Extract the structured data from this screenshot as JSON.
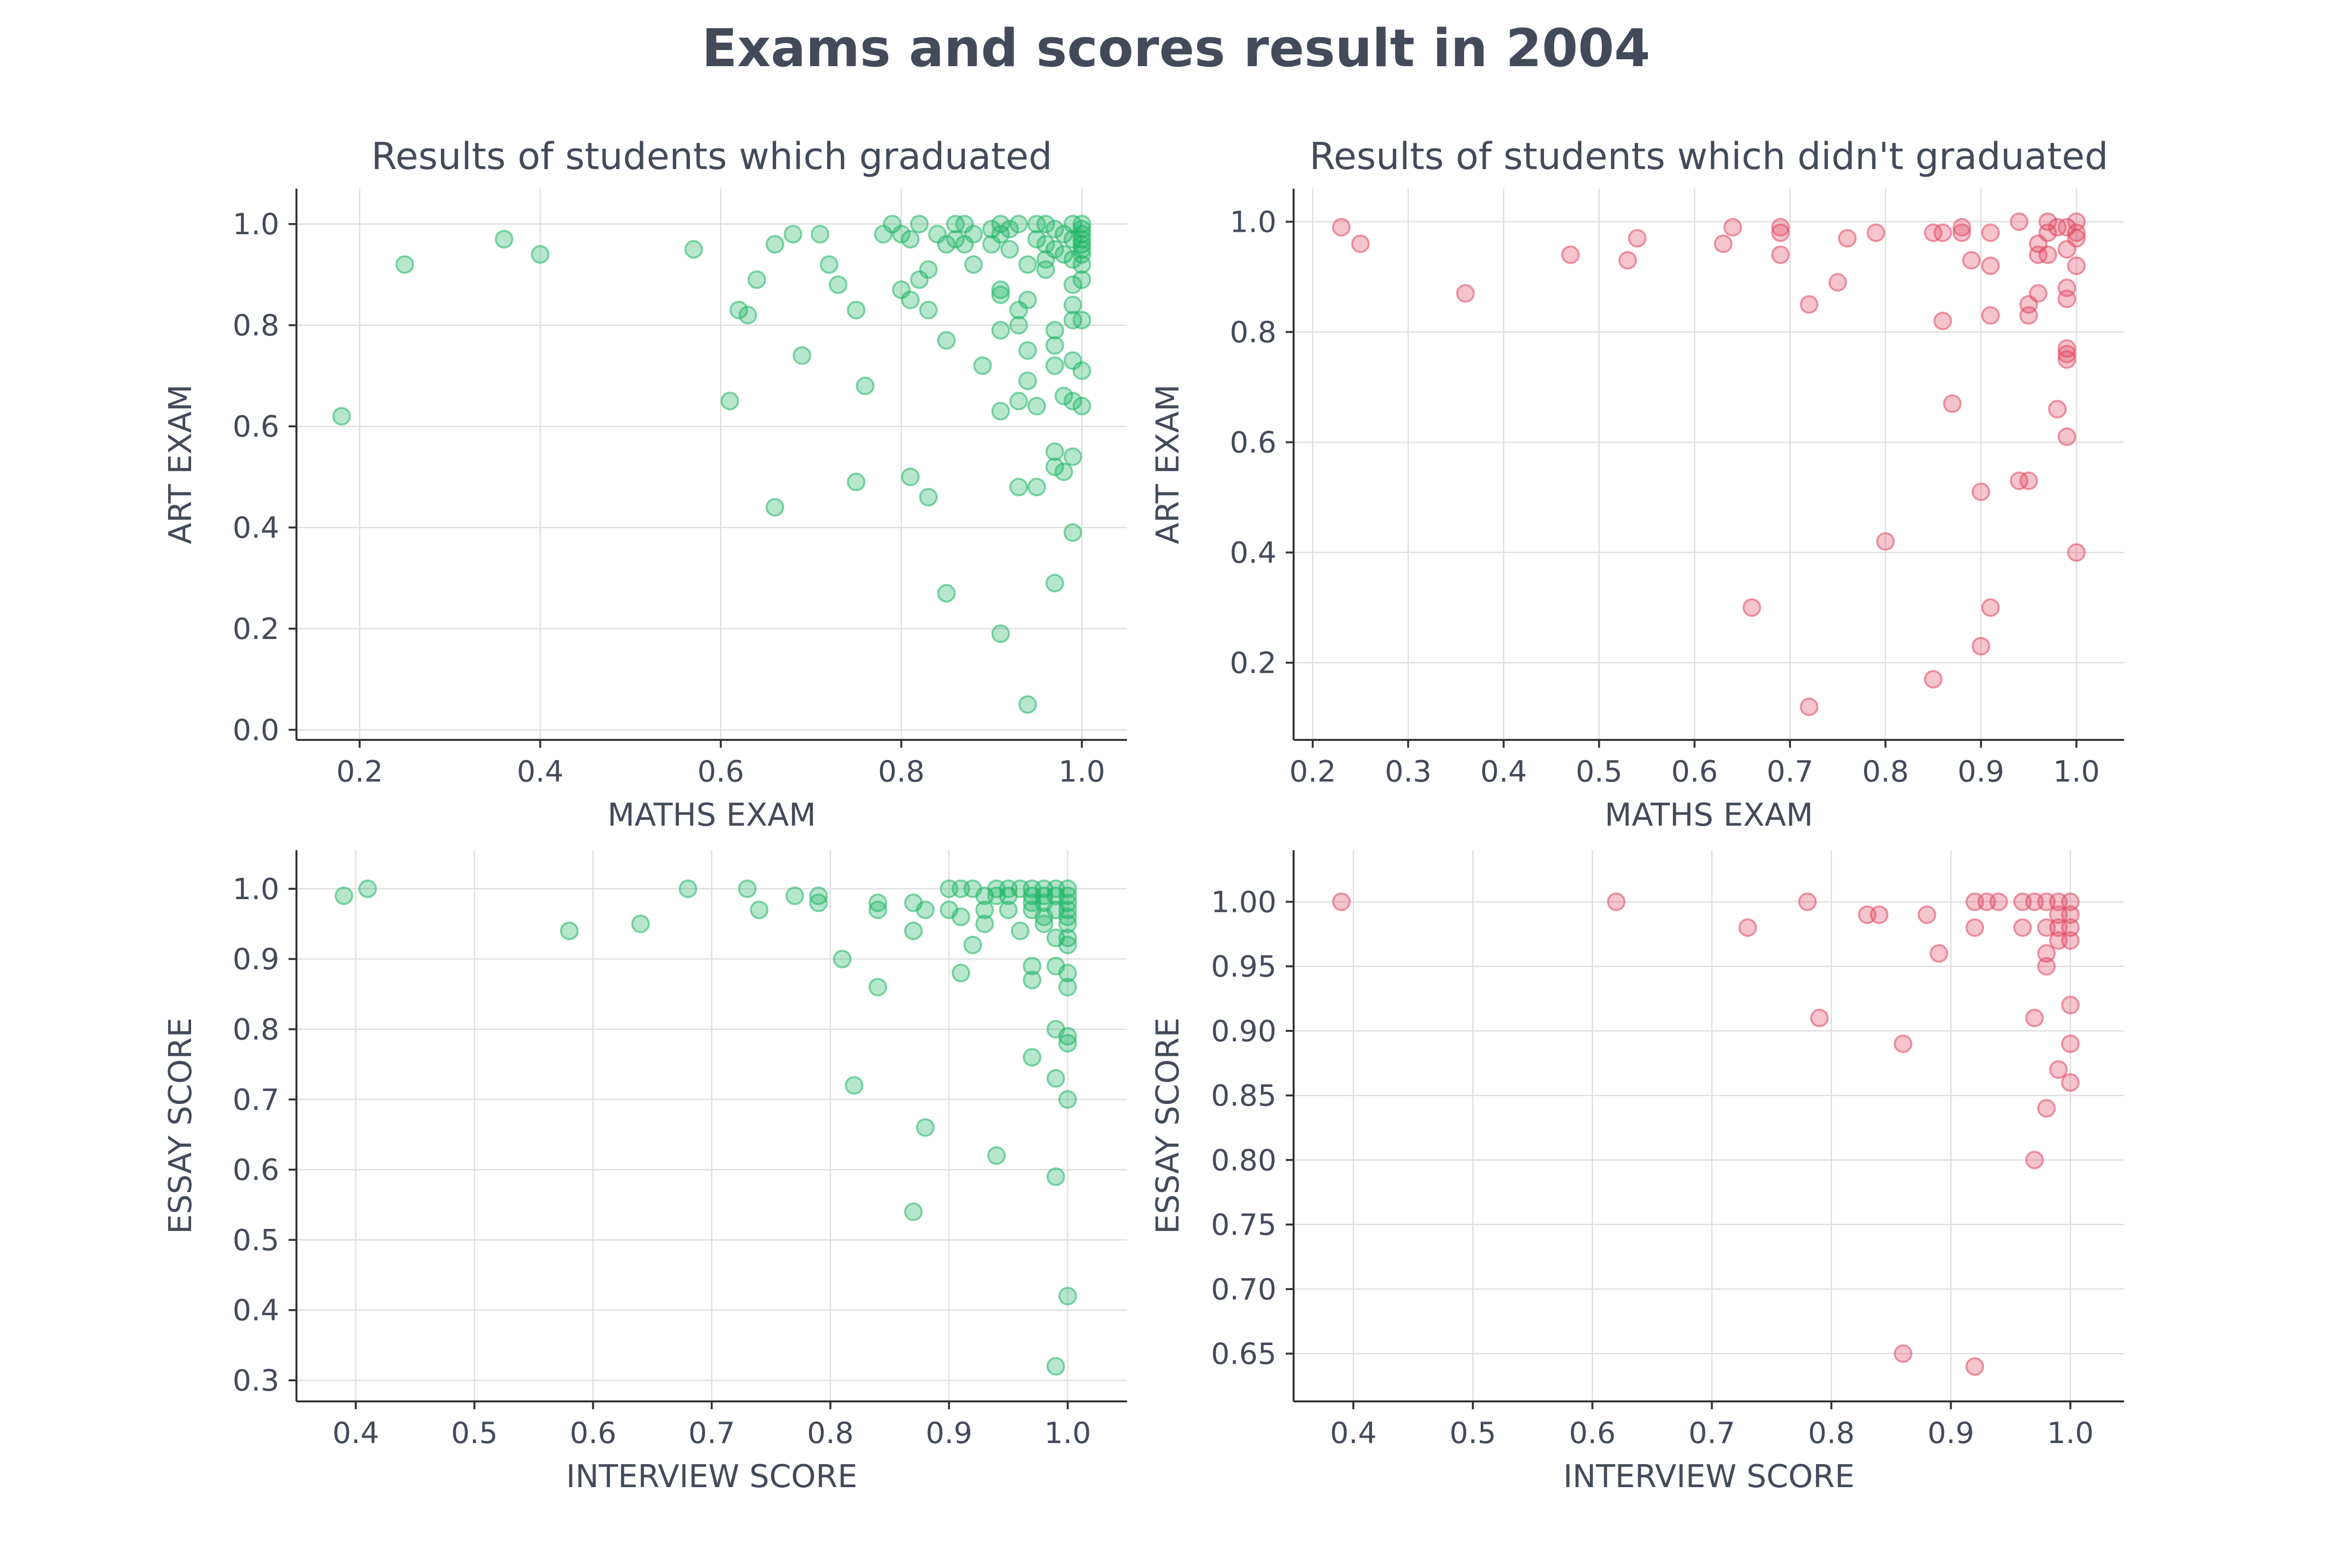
{
  "title": "Exams and scores result in 2004",
  "colors": {
    "graduated": "#1db462",
    "not_graduated": "#e0475f",
    "axis": "#333333",
    "grid": "#dddddd",
    "text": "#434a5a"
  },
  "chart_data": [
    {
      "type": "scatter",
      "title": "Results of students which graduated",
      "xlabel": "MATHS EXAM",
      "ylabel": "ART EXAM",
      "xlim": [
        0.13,
        1.05
      ],
      "ylim": [
        -0.02,
        1.07
      ],
      "xticks": [
        0.2,
        0.4,
        0.6,
        0.8,
        1.0
      ],
      "xtick_labels": [
        "0.2",
        "0.4",
        "0.6",
        "0.8",
        "1.0"
      ],
      "yticks": [
        0.0,
        0.2,
        0.4,
        0.6,
        0.8,
        1.0
      ],
      "ytick_labels": [
        "0.0",
        "0.2",
        "0.4",
        "0.6",
        "0.8",
        "1.0"
      ],
      "color": "#1db462",
      "grid": true,
      "points": [
        [
          0.18,
          0.62
        ],
        [
          0.25,
          0.92
        ],
        [
          0.36,
          0.97
        ],
        [
          0.4,
          0.94
        ],
        [
          0.57,
          0.95
        ],
        [
          0.61,
          0.65
        ],
        [
          0.62,
          0.83
        ],
        [
          0.63,
          0.82
        ],
        [
          0.64,
          0.89
        ],
        [
          0.66,
          0.96
        ],
        [
          0.66,
          0.44
        ],
        [
          0.68,
          0.98
        ],
        [
          0.69,
          0.74
        ],
        [
          0.71,
          0.98
        ],
        [
          0.72,
          0.92
        ],
        [
          0.73,
          0.88
        ],
        [
          0.75,
          0.83
        ],
        [
          0.75,
          0.49
        ],
        [
          0.76,
          0.68
        ],
        [
          0.78,
          0.98
        ],
        [
          0.79,
          1.0
        ],
        [
          0.8,
          0.98
        ],
        [
          0.8,
          0.87
        ],
        [
          0.81,
          0.97
        ],
        [
          0.81,
          0.85
        ],
        [
          0.81,
          0.5
        ],
        [
          0.82,
          1.0
        ],
        [
          0.82,
          0.89
        ],
        [
          0.83,
          0.91
        ],
        [
          0.83,
          0.83
        ],
        [
          0.83,
          0.46
        ],
        [
          0.84,
          0.98
        ],
        [
          0.85,
          0.96
        ],
        [
          0.85,
          0.77
        ],
        [
          0.85,
          0.27
        ],
        [
          0.86,
          1.0
        ],
        [
          0.86,
          0.97
        ],
        [
          0.87,
          1.0
        ],
        [
          0.87,
          0.96
        ],
        [
          0.88,
          0.98
        ],
        [
          0.88,
          0.92
        ],
        [
          0.89,
          0.72
        ],
        [
          0.9,
          0.99
        ],
        [
          0.9,
          0.96
        ],
        [
          0.91,
          0.98
        ],
        [
          0.91,
          1.0
        ],
        [
          0.91,
          0.87
        ],
        [
          0.91,
          0.86
        ],
        [
          0.91,
          0.79
        ],
        [
          0.91,
          0.63
        ],
        [
          0.91,
          0.19
        ],
        [
          0.92,
          0.99
        ],
        [
          0.92,
          0.95
        ],
        [
          0.93,
          1.0
        ],
        [
          0.93,
          0.83
        ],
        [
          0.93,
          0.8
        ],
        [
          0.93,
          0.65
        ],
        [
          0.93,
          0.48
        ],
        [
          0.94,
          0.92
        ],
        [
          0.94,
          0.85
        ],
        [
          0.94,
          0.75
        ],
        [
          0.94,
          0.69
        ],
        [
          0.94,
          0.05
        ],
        [
          0.95,
          1.0
        ],
        [
          0.95,
          0.97
        ],
        [
          0.95,
          0.64
        ],
        [
          0.95,
          0.48
        ],
        [
          0.96,
          1.0
        ],
        [
          0.96,
          0.96
        ],
        [
          0.96,
          0.93
        ],
        [
          0.96,
          0.91
        ],
        [
          0.97,
          0.99
        ],
        [
          0.97,
          0.95
        ],
        [
          0.97,
          0.79
        ],
        [
          0.97,
          0.76
        ],
        [
          0.97,
          0.72
        ],
        [
          0.97,
          0.55
        ],
        [
          0.97,
          0.52
        ],
        [
          0.97,
          0.29
        ],
        [
          0.98,
          0.98
        ],
        [
          0.98,
          0.94
        ],
        [
          0.98,
          0.66
        ],
        [
          0.98,
          0.51
        ],
        [
          0.99,
          1.0
        ],
        [
          0.99,
          0.97
        ],
        [
          0.99,
          0.93
        ],
        [
          0.99,
          0.88
        ],
        [
          0.99,
          0.84
        ],
        [
          0.99,
          0.81
        ],
        [
          0.99,
          0.73
        ],
        [
          0.99,
          0.65
        ],
        [
          0.99,
          0.54
        ],
        [
          0.99,
          0.39
        ],
        [
          1.0,
          1.0
        ],
        [
          1.0,
          0.99
        ],
        [
          1.0,
          0.98
        ],
        [
          1.0,
          0.97
        ],
        [
          1.0,
          0.96
        ],
        [
          1.0,
          0.95
        ],
        [
          1.0,
          0.94
        ],
        [
          1.0,
          0.92
        ],
        [
          1.0,
          0.89
        ],
        [
          1.0,
          0.81
        ],
        [
          1.0,
          0.71
        ],
        [
          1.0,
          0.64
        ]
      ]
    },
    {
      "type": "scatter",
      "title": "Results of students which didn't graduated",
      "xlabel": "MATHS EXAM",
      "ylabel": "ART EXAM",
      "xlim": [
        0.18,
        1.05
      ],
      "ylim": [
        0.06,
        1.06
      ],
      "xticks": [
        0.2,
        0.3,
        0.4,
        0.5,
        0.6,
        0.7,
        0.8,
        0.9,
        1.0
      ],
      "xtick_labels": [
        "0.2",
        "0.3",
        "0.4",
        "0.5",
        "0.6",
        "0.7",
        "0.8",
        "0.9",
        "1.0"
      ],
      "yticks": [
        0.2,
        0.4,
        0.6,
        0.8,
        1.0
      ],
      "ytick_labels": [
        "0.2",
        "0.4",
        "0.6",
        "0.8",
        "1.0"
      ],
      "color": "#e0475f",
      "grid": true,
      "points": [
        [
          0.23,
          0.99
        ],
        [
          0.25,
          0.96
        ],
        [
          0.36,
          0.87
        ],
        [
          0.47,
          0.94
        ],
        [
          0.53,
          0.93
        ],
        [
          0.54,
          0.97
        ],
        [
          0.63,
          0.96
        ],
        [
          0.64,
          0.99
        ],
        [
          0.66,
          0.3
        ],
        [
          0.69,
          0.99
        ],
        [
          0.69,
          0.98
        ],
        [
          0.69,
          0.94
        ],
        [
          0.72,
          0.85
        ],
        [
          0.72,
          0.12
        ],
        [
          0.75,
          0.89
        ],
        [
          0.76,
          0.97
        ],
        [
          0.79,
          0.98
        ],
        [
          0.8,
          0.42
        ],
        [
          0.85,
          0.98
        ],
        [
          0.85,
          0.17
        ],
        [
          0.86,
          0.98
        ],
        [
          0.86,
          0.82
        ],
        [
          0.87,
          0.67
        ],
        [
          0.88,
          0.99
        ],
        [
          0.88,
          0.98
        ],
        [
          0.89,
          0.93
        ],
        [
          0.9,
          0.51
        ],
        [
          0.9,
          0.23
        ],
        [
          0.91,
          0.98
        ],
        [
          0.91,
          0.92
        ],
        [
          0.91,
          0.83
        ],
        [
          0.91,
          0.3
        ],
        [
          0.94,
          1.0
        ],
        [
          0.94,
          0.53
        ],
        [
          0.95,
          0.85
        ],
        [
          0.95,
          0.83
        ],
        [
          0.95,
          0.53
        ],
        [
          0.96,
          0.96
        ],
        [
          0.96,
          0.94
        ],
        [
          0.96,
          0.87
        ],
        [
          0.97,
          1.0
        ],
        [
          0.97,
          0.98
        ],
        [
          0.97,
          0.94
        ],
        [
          0.98,
          0.99
        ],
        [
          0.98,
          0.66
        ],
        [
          0.99,
          0.99
        ],
        [
          0.99,
          0.95
        ],
        [
          0.99,
          0.88
        ],
        [
          0.99,
          0.86
        ],
        [
          0.99,
          0.77
        ],
        [
          0.99,
          0.76
        ],
        [
          0.99,
          0.75
        ],
        [
          0.99,
          0.61
        ],
        [
          1.0,
          1.0
        ],
        [
          1.0,
          0.98
        ],
        [
          1.0,
          0.97
        ],
        [
          1.0,
          0.92
        ],
        [
          1.0,
          0.4
        ]
      ]
    },
    {
      "type": "scatter",
      "title": "",
      "xlabel": "INTERVIEW SCORE",
      "ylabel": "ESSAY SCORE",
      "xlim": [
        0.35,
        1.05
      ],
      "ylim": [
        0.27,
        1.055
      ],
      "xticks": [
        0.4,
        0.5,
        0.6,
        0.7,
        0.8,
        0.9,
        1.0
      ],
      "xtick_labels": [
        "0.4",
        "0.5",
        "0.6",
        "0.7",
        "0.8",
        "0.9",
        "1.0"
      ],
      "yticks": [
        0.3,
        0.4,
        0.5,
        0.6,
        0.7,
        0.8,
        0.9,
        1.0
      ],
      "ytick_labels": [
        "0.3",
        "0.4",
        "0.5",
        "0.6",
        "0.7",
        "0.8",
        "0.9",
        "1.0"
      ],
      "color": "#1db462",
      "grid": true,
      "points": [
        [
          0.39,
          0.99
        ],
        [
          0.41,
          1.0
        ],
        [
          0.58,
          0.94
        ],
        [
          0.64,
          0.95
        ],
        [
          0.68,
          1.0
        ],
        [
          0.73,
          1.0
        ],
        [
          0.74,
          0.97
        ],
        [
          0.77,
          0.99
        ],
        [
          0.79,
          0.99
        ],
        [
          0.79,
          0.98
        ],
        [
          0.81,
          0.9
        ],
        [
          0.82,
          0.72
        ],
        [
          0.84,
          0.98
        ],
        [
          0.84,
          0.97
        ],
        [
          0.84,
          0.86
        ],
        [
          0.87,
          0.98
        ],
        [
          0.87,
          0.94
        ],
        [
          0.87,
          0.54
        ],
        [
          0.88,
          0.97
        ],
        [
          0.88,
          0.66
        ],
        [
          0.9,
          1.0
        ],
        [
          0.9,
          0.97
        ],
        [
          0.91,
          1.0
        ],
        [
          0.91,
          0.96
        ],
        [
          0.91,
          0.88
        ],
        [
          0.92,
          1.0
        ],
        [
          0.92,
          0.92
        ],
        [
          0.93,
          0.99
        ],
        [
          0.93,
          0.97
        ],
        [
          0.93,
          0.95
        ],
        [
          0.94,
          1.0
        ],
        [
          0.94,
          0.99
        ],
        [
          0.94,
          0.62
        ],
        [
          0.95,
          1.0
        ],
        [
          0.95,
          0.99
        ],
        [
          0.95,
          0.97
        ],
        [
          0.96,
          1.0
        ],
        [
          0.96,
          0.94
        ],
        [
          0.97,
          1.0
        ],
        [
          0.97,
          0.99
        ],
        [
          0.97,
          0.98
        ],
        [
          0.97,
          0.97
        ],
        [
          0.97,
          0.89
        ],
        [
          0.97,
          0.87
        ],
        [
          0.97,
          0.76
        ],
        [
          0.98,
          1.0
        ],
        [
          0.98,
          0.99
        ],
        [
          0.98,
          0.98
        ],
        [
          0.98,
          0.96
        ],
        [
          0.98,
          0.95
        ],
        [
          0.99,
          1.0
        ],
        [
          0.99,
          0.99
        ],
        [
          0.99,
          0.97
        ],
        [
          0.99,
          0.93
        ],
        [
          0.99,
          0.89
        ],
        [
          0.99,
          0.8
        ],
        [
          0.99,
          0.73
        ],
        [
          0.99,
          0.59
        ],
        [
          0.99,
          0.32
        ],
        [
          1.0,
          1.0
        ],
        [
          1.0,
          0.99
        ],
        [
          1.0,
          0.98
        ],
        [
          1.0,
          0.97
        ],
        [
          1.0,
          0.96
        ],
        [
          1.0,
          0.95
        ],
        [
          1.0,
          0.93
        ],
        [
          1.0,
          0.92
        ],
        [
          1.0,
          0.88
        ],
        [
          1.0,
          0.86
        ],
        [
          1.0,
          0.79
        ],
        [
          1.0,
          0.78
        ],
        [
          1.0,
          0.7
        ],
        [
          1.0,
          0.42
        ]
      ]
    },
    {
      "type": "scatter",
      "title": "",
      "xlabel": "INTERVIEW SCORE",
      "ylabel": "ESSAY SCORE",
      "xlim": [
        0.35,
        1.045
      ],
      "ylim": [
        0.613,
        1.04
      ],
      "xticks": [
        0.4,
        0.5,
        0.6,
        0.7,
        0.8,
        0.9,
        1.0
      ],
      "xtick_labels": [
        "0.4",
        "0.5",
        "0.6",
        "0.7",
        "0.8",
        "0.9",
        "1.0"
      ],
      "yticks": [
        0.65,
        0.7,
        0.75,
        0.8,
        0.85,
        0.9,
        0.95,
        1.0
      ],
      "ytick_labels": [
        "0.65",
        "0.70",
        "0.75",
        "0.80",
        "0.85",
        "0.90",
        "0.95",
        "1.00"
      ],
      "color": "#e0475f",
      "grid": true,
      "points": [
        [
          0.39,
          1.0
        ],
        [
          0.62,
          1.0
        ],
        [
          0.73,
          0.98
        ],
        [
          0.78,
          1.0
        ],
        [
          0.79,
          0.91
        ],
        [
          0.83,
          0.99
        ],
        [
          0.84,
          0.99
        ],
        [
          0.86,
          0.89
        ],
        [
          0.86,
          0.65
        ],
        [
          0.88,
          0.99
        ],
        [
          0.89,
          0.96
        ],
        [
          0.92,
          1.0
        ],
        [
          0.92,
          0.98
        ],
        [
          0.92,
          0.64
        ],
        [
          0.93,
          1.0
        ],
        [
          0.94,
          1.0
        ],
        [
          0.96,
          1.0
        ],
        [
          0.96,
          0.98
        ],
        [
          0.97,
          1.0
        ],
        [
          0.97,
          0.91
        ],
        [
          0.97,
          0.8
        ],
        [
          0.98,
          1.0
        ],
        [
          0.98,
          0.98
        ],
        [
          0.98,
          0.96
        ],
        [
          0.98,
          0.95
        ],
        [
          0.98,
          0.84
        ],
        [
          0.99,
          1.0
        ],
        [
          0.99,
          0.99
        ],
        [
          0.99,
          0.98
        ],
        [
          0.99,
          0.97
        ],
        [
          0.99,
          0.87
        ],
        [
          1.0,
          1.0
        ],
        [
          1.0,
          0.99
        ],
        [
          1.0,
          0.98
        ],
        [
          1.0,
          0.97
        ],
        [
          1.0,
          0.92
        ],
        [
          1.0,
          0.89
        ],
        [
          1.0,
          0.86
        ]
      ]
    }
  ]
}
